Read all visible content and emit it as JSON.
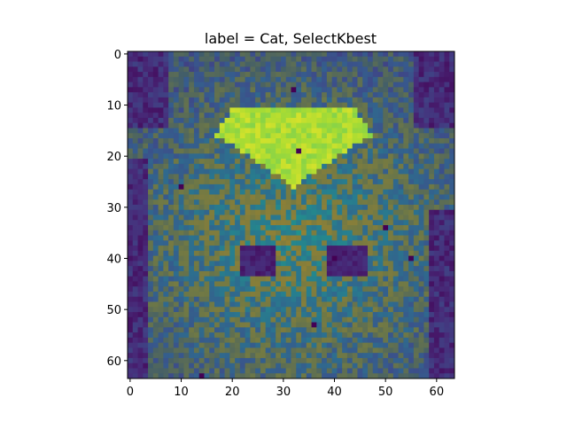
{
  "chart_data": {
    "type": "heatmap",
    "title": "label = Cat, SelectKbest",
    "xlabel": "",
    "ylabel": "",
    "x_range": [
      -0.5,
      63.5
    ],
    "y_range": [
      -0.5,
      63.5
    ],
    "y_inverted": true,
    "x_ticks": [
      0,
      10,
      20,
      30,
      40,
      50,
      60
    ],
    "y_ticks": [
      0,
      10,
      20,
      30,
      40,
      50,
      60
    ],
    "colormap": "viridis",
    "grid": false,
    "image_size": [
      64,
      64
    ],
    "highlight_region": {
      "description": "selected features (bright yellow-green) on forehead",
      "rows": [
        11,
        26
      ],
      "cols": [
        19,
        46
      ]
    },
    "outlier_pixels": [
      [
        33,
        19
      ],
      [
        14,
        63
      ],
      [
        50,
        34
      ],
      [
        55,
        40
      ],
      [
        40,
        40
      ],
      [
        36,
        53
      ],
      [
        32,
        7
      ],
      [
        10,
        26
      ]
    ]
  }
}
